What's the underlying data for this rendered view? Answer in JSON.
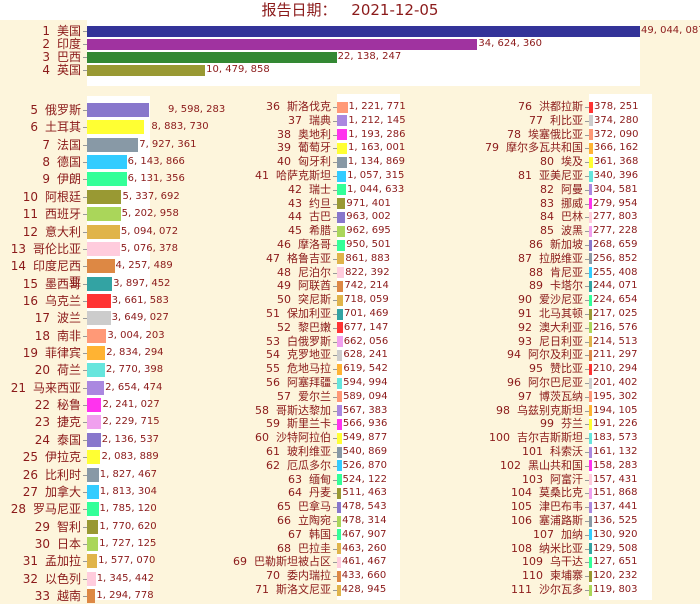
{
  "header": {
    "title_label": "报告日期：",
    "date": "2021-12-05"
  },
  "chart_data": {
    "type": "bar",
    "orientation": "horizontal",
    "title": "报告日期： 2021-12-05",
    "xlabel": "",
    "ylabel": "",
    "grid": false,
    "legend": "none",
    "panels": [
      {
        "name": "top-4",
        "ranks": [
          1,
          2,
          3,
          4
        ],
        "xlim": [
          0,
          49044087
        ]
      },
      {
        "name": "col-1",
        "ranks": [
          5,
          33
        ],
        "xlim": [
          0,
          9598283
        ]
      },
      {
        "name": "col-2",
        "ranks": [
          36,
          71
        ],
        "xlim": [
          0,
          1221771
        ]
      },
      {
        "name": "col-3",
        "ranks": [
          76,
          111
        ],
        "xlim": [
          0,
          378251
        ]
      }
    ],
    "rows": [
      {
        "rank": 1,
        "name": "美国",
        "value": 49044087,
        "label": "49, 044, 087",
        "color": "#333399"
      },
      {
        "rank": 2,
        "name": "印度",
        "value": 34624360,
        "label": "34, 624, 360",
        "color": "#a033a0"
      },
      {
        "rank": 3,
        "name": "巴西",
        "value": 22138247,
        "label": "22, 138, 247",
        "color": "#338833"
      },
      {
        "rank": 4,
        "name": "英国",
        "value": 10479858,
        "label": "10, 479, 858",
        "color": "#999933"
      },
      {
        "rank": 5,
        "name": "俄罗斯",
        "value": 9598283,
        "label": "9, 598, 283",
        "color": "#8877cc"
      },
      {
        "rank": 6,
        "name": "土耳其",
        "value": 8883730,
        "label": "8, 883, 730",
        "color": "#ffff33"
      },
      {
        "rank": 7,
        "name": "法国",
        "value": 7927361,
        "label": "7, 927, 361",
        "color": "#8899a6"
      },
      {
        "rank": 8,
        "name": "德国",
        "value": 6143866,
        "label": "6, 143, 866",
        "color": "#33ccff"
      },
      {
        "rank": 9,
        "name": "伊朗",
        "value": 6131356,
        "label": "6, 131, 356",
        "color": "#33ff99"
      },
      {
        "rank": 10,
        "name": "阿根廷",
        "value": 5337692,
        "label": "5, 337, 692",
        "color": "#999933"
      },
      {
        "rank": 11,
        "name": "西班牙",
        "value": 5202958,
        "label": "5, 202, 958",
        "color": "#aad65a"
      },
      {
        "rank": 12,
        "name": "意大利",
        "value": 5094072,
        "label": "5, 094, 072",
        "color": "#e0b44a"
      },
      {
        "rank": 13,
        "name": "哥伦比亚",
        "value": 5076378,
        "label": "5, 076, 378",
        "color": "#ffccdd"
      },
      {
        "rank": 14,
        "name": "印度尼西亚",
        "value": 4257489,
        "label": "4, 257, 489",
        "color": "#dd8844"
      },
      {
        "rank": 15,
        "name": "墨西哥",
        "value": 3897452,
        "label": "3, 897, 452",
        "color": "#33a3a3"
      },
      {
        "rank": 16,
        "name": "乌克兰",
        "value": 3661583,
        "label": "3, 661, 583",
        "color": "#ff3333"
      },
      {
        "rank": 17,
        "name": "波兰",
        "value": 3649027,
        "label": "3, 649, 027",
        "color": "#cccccc"
      },
      {
        "rank": 18,
        "name": "南非",
        "value": 3004203,
        "label": "3, 004, 203",
        "color": "#ff9977"
      },
      {
        "rank": 19,
        "name": "菲律宾",
        "value": 2834294,
        "label": "2, 834, 294",
        "color": "#ffb333"
      },
      {
        "rank": 20,
        "name": "荷兰",
        "value": 2770398,
        "label": "2, 770, 398",
        "color": "#66e5dd"
      },
      {
        "rank": 21,
        "name": "马来西亚",
        "value": 2654474,
        "label": "2, 654, 474",
        "color": "#aa88e0"
      },
      {
        "rank": 22,
        "name": "秘鲁",
        "value": 2241027,
        "label": "2, 241, 027",
        "color": "#ff33ee"
      },
      {
        "rank": 23,
        "name": "捷克",
        "value": 2229715,
        "label": "2, 229, 715",
        "color": "#f0a0ee"
      },
      {
        "rank": 24,
        "name": "泰国",
        "value": 2136537,
        "label": "2, 136, 537",
        "color": "#8877cc"
      },
      {
        "rank": 25,
        "name": "伊拉克",
        "value": 2083889,
        "label": "2, 083, 889",
        "color": "#ffff33"
      },
      {
        "rank": 26,
        "name": "比利时",
        "value": 1827467,
        "label": "1, 827, 467",
        "color": "#8899a6"
      },
      {
        "rank": 27,
        "name": "加拿大",
        "value": 1813304,
        "label": "1, 813, 304",
        "color": "#33ccff"
      },
      {
        "rank": 28,
        "name": "罗马尼亚",
        "value": 1785120,
        "label": "1, 785, 120",
        "color": "#33ff99"
      },
      {
        "rank": 29,
        "name": "智利",
        "value": 1770620,
        "label": "1, 770, 620",
        "color": "#999933"
      },
      {
        "rank": 30,
        "name": "日本",
        "value": 1727125,
        "label": "1, 727, 125",
        "color": "#aad65a"
      },
      {
        "rank": 31,
        "name": "孟加拉",
        "value": 1577070,
        "label": "1, 577, 070",
        "color": "#e0b44a"
      },
      {
        "rank": 32,
        "name": "以色列",
        "value": 1345442,
        "label": "1, 345, 442",
        "color": "#ffccdd"
      },
      {
        "rank": 33,
        "name": "越南",
        "value": 1294778,
        "label": "1, 294, 778",
        "color": "#dd8844"
      },
      {
        "rank": 36,
        "name": "斯洛伐克",
        "value": 1221771,
        "label": "1, 221, 771",
        "color": "#ff9977"
      },
      {
        "rank": 37,
        "name": "瑞典",
        "value": 1212145,
        "label": "1, 212, 145",
        "color": "#aa88e0"
      },
      {
        "rank": 38,
        "name": "奥地利",
        "value": 1193286,
        "label": "1, 193, 286",
        "color": "#ff33ee"
      },
      {
        "rank": 39,
        "name": "葡萄牙",
        "value": 1163001,
        "label": "1, 163, 001",
        "color": "#ffff33"
      },
      {
        "rank": 40,
        "name": "匈牙利",
        "value": 1134869,
        "label": "1, 134, 869",
        "color": "#8899a6"
      },
      {
        "rank": 41,
        "name": "哈萨克斯坦",
        "value": 1057315,
        "label": "1, 057, 315",
        "color": "#33ccff"
      },
      {
        "rank": 42,
        "name": "瑞士",
        "value": 1044633,
        "label": "1, 044, 633",
        "color": "#33ff99"
      },
      {
        "rank": 43,
        "name": "约旦",
        "value": 971401,
        "label": "971, 401",
        "color": "#999933"
      },
      {
        "rank": 44,
        "name": "古巴",
        "value": 963002,
        "label": "963, 002",
        "color": "#8877cc"
      },
      {
        "rank": 45,
        "name": "希腊",
        "value": 962695,
        "label": "962, 695",
        "color": "#aad65a"
      },
      {
        "rank": 46,
        "name": "摩洛哥",
        "value": 950501,
        "label": "950, 501",
        "color": "#33ff99"
      },
      {
        "rank": 47,
        "name": "格鲁吉亚",
        "value": 861883,
        "label": "861, 883",
        "color": "#e0b44a"
      },
      {
        "rank": 48,
        "name": "尼泊尔",
        "value": 822392,
        "label": "822, 392",
        "color": "#ffccdd"
      },
      {
        "rank": 49,
        "name": "阿联酋",
        "value": 742214,
        "label": "742, 214",
        "color": "#dd8844"
      },
      {
        "rank": 50,
        "name": "突尼斯",
        "value": 718059,
        "label": "718, 059",
        "color": "#e0b44a"
      },
      {
        "rank": 51,
        "name": "保加利亚",
        "value": 701469,
        "label": "701, 469",
        "color": "#33a3a3"
      },
      {
        "rank": 52,
        "name": "黎巴嫩",
        "value": 677147,
        "label": "677, 147",
        "color": "#ff3333"
      },
      {
        "rank": 53,
        "name": "白俄罗斯",
        "value": 662056,
        "label": "662, 056",
        "color": "#f0a0ee"
      },
      {
        "rank": 54,
        "name": "克罗地亚",
        "value": 628241,
        "label": "628, 241",
        "color": "#cccccc"
      },
      {
        "rank": 55,
        "name": "危地马拉",
        "value": 619542,
        "label": "619, 542",
        "color": "#ffb333"
      },
      {
        "rank": 56,
        "name": "阿塞拜疆",
        "value": 594994,
        "label": "594, 994",
        "color": "#66e5dd"
      },
      {
        "rank": 57,
        "name": "爱尔兰",
        "value": 589094,
        "label": "589, 094",
        "color": "#ff9977"
      },
      {
        "rank": 58,
        "name": "哥斯达黎加",
        "value": 567383,
        "label": "567, 383",
        "color": "#aa88e0"
      },
      {
        "rank": 59,
        "name": "斯里兰卡",
        "value": 566936,
        "label": "566, 936",
        "color": "#ff33ee"
      },
      {
        "rank": 60,
        "name": "沙特阿拉伯",
        "value": 549877,
        "label": "549, 877",
        "color": "#ffff33"
      },
      {
        "rank": 61,
        "name": "玻利维亚",
        "value": 540869,
        "label": "540, 869",
        "color": "#8899a6"
      },
      {
        "rank": 62,
        "name": "厄瓜多尔",
        "value": 526870,
        "label": "526, 870",
        "color": "#33ccff"
      },
      {
        "rank": 63,
        "name": "缅甸",
        "value": 524122,
        "label": "524, 122",
        "color": "#33ff99"
      },
      {
        "rank": 64,
        "name": "丹麦",
        "value": 511463,
        "label": "511, 463",
        "color": "#999933"
      },
      {
        "rank": 65,
        "name": "巴拿马",
        "value": 478543,
        "label": "478, 543",
        "color": "#8877cc"
      },
      {
        "rank": 66,
        "name": "立陶宛",
        "value": 478314,
        "label": "478, 314",
        "color": "#aad65a"
      },
      {
        "rank": 67,
        "name": "韩国",
        "value": 467907,
        "label": "467, 907",
        "color": "#33ff99"
      },
      {
        "rank": 68,
        "name": "巴拉圭",
        "value": 463260,
        "label": "463, 260",
        "color": "#e0b44a"
      },
      {
        "rank": 69,
        "name": "巴勒斯坦被占区",
        "value": 461467,
        "label": "461, 467",
        "color": "#ffccdd"
      },
      {
        "rank": 70,
        "name": "委内瑞拉",
        "value": 433660,
        "label": "433, 660",
        "color": "#dd8844"
      },
      {
        "rank": 71,
        "name": "斯洛文尼亚",
        "value": 428945,
        "label": "428, 945",
        "color": "#e0b44a"
      },
      {
        "rank": 76,
        "name": "洪都拉斯",
        "value": 378251,
        "label": "378, 251",
        "color": "#ff3333"
      },
      {
        "rank": 77,
        "name": "利比亚",
        "value": 374280,
        "label": "374, 280",
        "color": "#cccccc"
      },
      {
        "rank": 78,
        "name": "埃塞俄比亚",
        "value": 372090,
        "label": "372, 090",
        "color": "#ff9977"
      },
      {
        "rank": 79,
        "name": "摩尔多瓦共和国",
        "value": 366162,
        "label": "366, 162",
        "color": "#ffb333"
      },
      {
        "rank": 80,
        "name": "埃及",
        "value": 361368,
        "label": "361, 368",
        "color": "#ffff33"
      },
      {
        "rank": 81,
        "name": "亚美尼亚",
        "value": 340396,
        "label": "340, 396",
        "color": "#66e5dd"
      },
      {
        "rank": 82,
        "name": "阿曼",
        "value": 304581,
        "label": "304, 581",
        "color": "#aa88e0"
      },
      {
        "rank": 83,
        "name": "挪威",
        "value": 279954,
        "label": "279, 954",
        "color": "#ff33ee"
      },
      {
        "rank": 84,
        "name": "巴林",
        "value": 277803,
        "label": "277, 803",
        "color": "#ffccdd"
      },
      {
        "rank": 85,
        "name": "波黑",
        "value": 277228,
        "label": "277, 228",
        "color": "#f0a0ee"
      },
      {
        "rank": 86,
        "name": "新加坡",
        "value": 268659,
        "label": "268, 659",
        "color": "#8877cc"
      },
      {
        "rank": 87,
        "name": "拉脱维亚",
        "value": 256852,
        "label": "256, 852",
        "color": "#8899a6"
      },
      {
        "rank": 88,
        "name": "肯尼亚",
        "value": 255408,
        "label": "255, 408",
        "color": "#33ccff"
      },
      {
        "rank": 89,
        "name": "卡塔尔",
        "value": 244071,
        "label": "244, 071",
        "color": "#33a3a3"
      },
      {
        "rank": 90,
        "name": "爱沙尼亚",
        "value": 224654,
        "label": "224, 654",
        "color": "#33ff99"
      },
      {
        "rank": 91,
        "name": "北马其顿",
        "value": 217025,
        "label": "217, 025",
        "color": "#999933"
      },
      {
        "rank": 92,
        "name": "澳大利亚",
        "value": 216576,
        "label": "216, 576",
        "color": "#aad65a"
      },
      {
        "rank": 93,
        "name": "尼日利亚",
        "value": 214513,
        "label": "214, 513",
        "color": "#e0b44a"
      },
      {
        "rank": 94,
        "name": "阿尔及利亚",
        "value": 211297,
        "label": "211, 297",
        "color": "#dd8844"
      },
      {
        "rank": 95,
        "name": "赞比亚",
        "value": 210294,
        "label": "210, 294",
        "color": "#ff3333"
      },
      {
        "rank": 96,
        "name": "阿尔巴尼亚",
        "value": 201402,
        "label": "201, 402",
        "color": "#cccccc"
      },
      {
        "rank": 97,
        "name": "博茨瓦纳",
        "value": 195302,
        "label": "195, 302",
        "color": "#ff9977"
      },
      {
        "rank": 98,
        "name": "乌兹别克斯坦",
        "value": 194105,
        "label": "194, 105",
        "color": "#ffb333"
      },
      {
        "rank": 99,
        "name": "芬兰",
        "value": 191226,
        "label": "191, 226",
        "color": "#ffff33"
      },
      {
        "rank": 100,
        "name": "吉尔吉斯斯坦",
        "value": 183573,
        "label": "183, 573",
        "color": "#66e5dd"
      },
      {
        "rank": 101,
        "name": "科索沃",
        "value": 161132,
        "label": "161, 132",
        "color": "#aa88e0"
      },
      {
        "rank": 102,
        "name": "黑山共和国",
        "value": 158283,
        "label": "158, 283",
        "color": "#ff33ee"
      },
      {
        "rank": 103,
        "name": "阿富汗",
        "value": 157431,
        "label": "157, 431",
        "color": "#ffccdd"
      },
      {
        "rank": 104,
        "name": "莫桑比克",
        "value": 151868,
        "label": "151, 868",
        "color": "#f0a0ee"
      },
      {
        "rank": 105,
        "name": "津巴布韦",
        "value": 137441,
        "label": "137, 441",
        "color": "#aa88e0"
      },
      {
        "rank": 106,
        "name": "塞浦路斯",
        "value": 136525,
        "label": "136, 525",
        "color": "#8899a6"
      },
      {
        "rank": 107,
        "name": "加纳",
        "value": 130920,
        "label": "130, 920",
        "color": "#33ccff"
      },
      {
        "rank": 108,
        "name": "纳米比亚",
        "value": 129508,
        "label": "129, 508",
        "color": "#33a3a3"
      },
      {
        "rank": 109,
        "name": "乌干达",
        "value": 127651,
        "label": "127, 651",
        "color": "#33ff99"
      },
      {
        "rank": 110,
        "name": "柬埔寨",
        "value": 120232,
        "label": "120, 232",
        "color": "#999933"
      },
      {
        "rank": 111,
        "name": "沙尔瓦多",
        "value": 119803,
        "label": "119, 803",
        "color": "#aad65a"
      }
    ]
  }
}
